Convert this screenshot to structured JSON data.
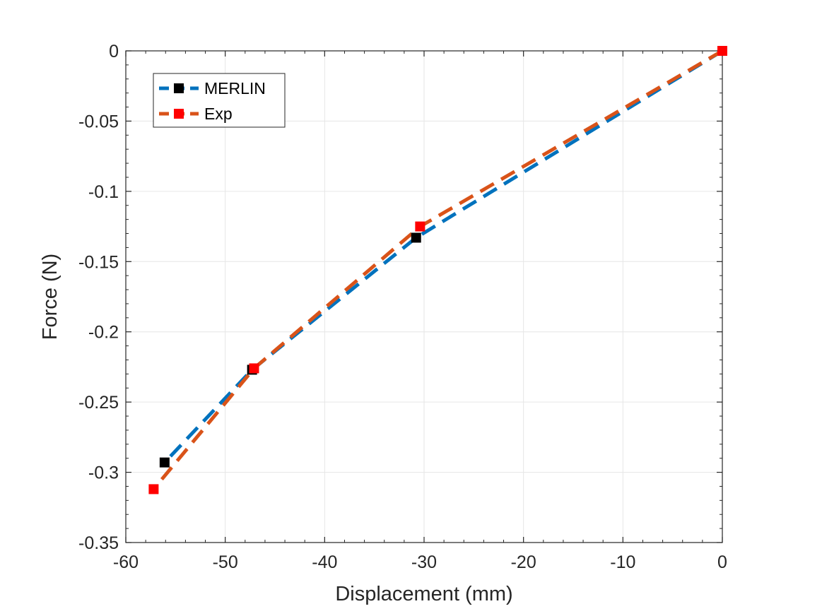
{
  "chart_data": {
    "type": "line",
    "title": "",
    "xlabel": "Displacement (mm)",
    "ylabel": "Force (N)",
    "xlim": [
      -60,
      0
    ],
    "ylim": [
      -0.35,
      0
    ],
    "xticks": [
      -60,
      -50,
      -40,
      -30,
      -20,
      -10,
      0
    ],
    "yticks": [
      0,
      -0.05,
      -0.1,
      -0.15,
      -0.2,
      -0.25,
      -0.3,
      -0.35
    ],
    "xtick_labels": [
      "-60",
      "-50",
      "-40",
      "-30",
      "-20",
      "-10",
      "0"
    ],
    "ytick_labels": [
      "0",
      "-0.05",
      "-0.1",
      "-0.15",
      "-0.2",
      "-0.25",
      "-0.3",
      "-0.35"
    ],
    "grid": true,
    "legend_location": "top-left",
    "series": [
      {
        "name": "MERLIN",
        "line_color": "#0072bd",
        "marker_color": "#000000",
        "line_style": "dashed",
        "marker": "square",
        "x": [
          0,
          -30.8,
          -47.3,
          -56.1
        ],
        "y": [
          0,
          -0.133,
          -0.227,
          -0.293
        ]
      },
      {
        "name": "Exp",
        "line_color": "#d95319",
        "marker_color": "#ff0000",
        "line_style": "dashed",
        "marker": "square",
        "x": [
          0,
          -30.4,
          -47.1,
          -57.2
        ],
        "y": [
          0,
          -0.125,
          -0.226,
          -0.312
        ]
      }
    ]
  }
}
